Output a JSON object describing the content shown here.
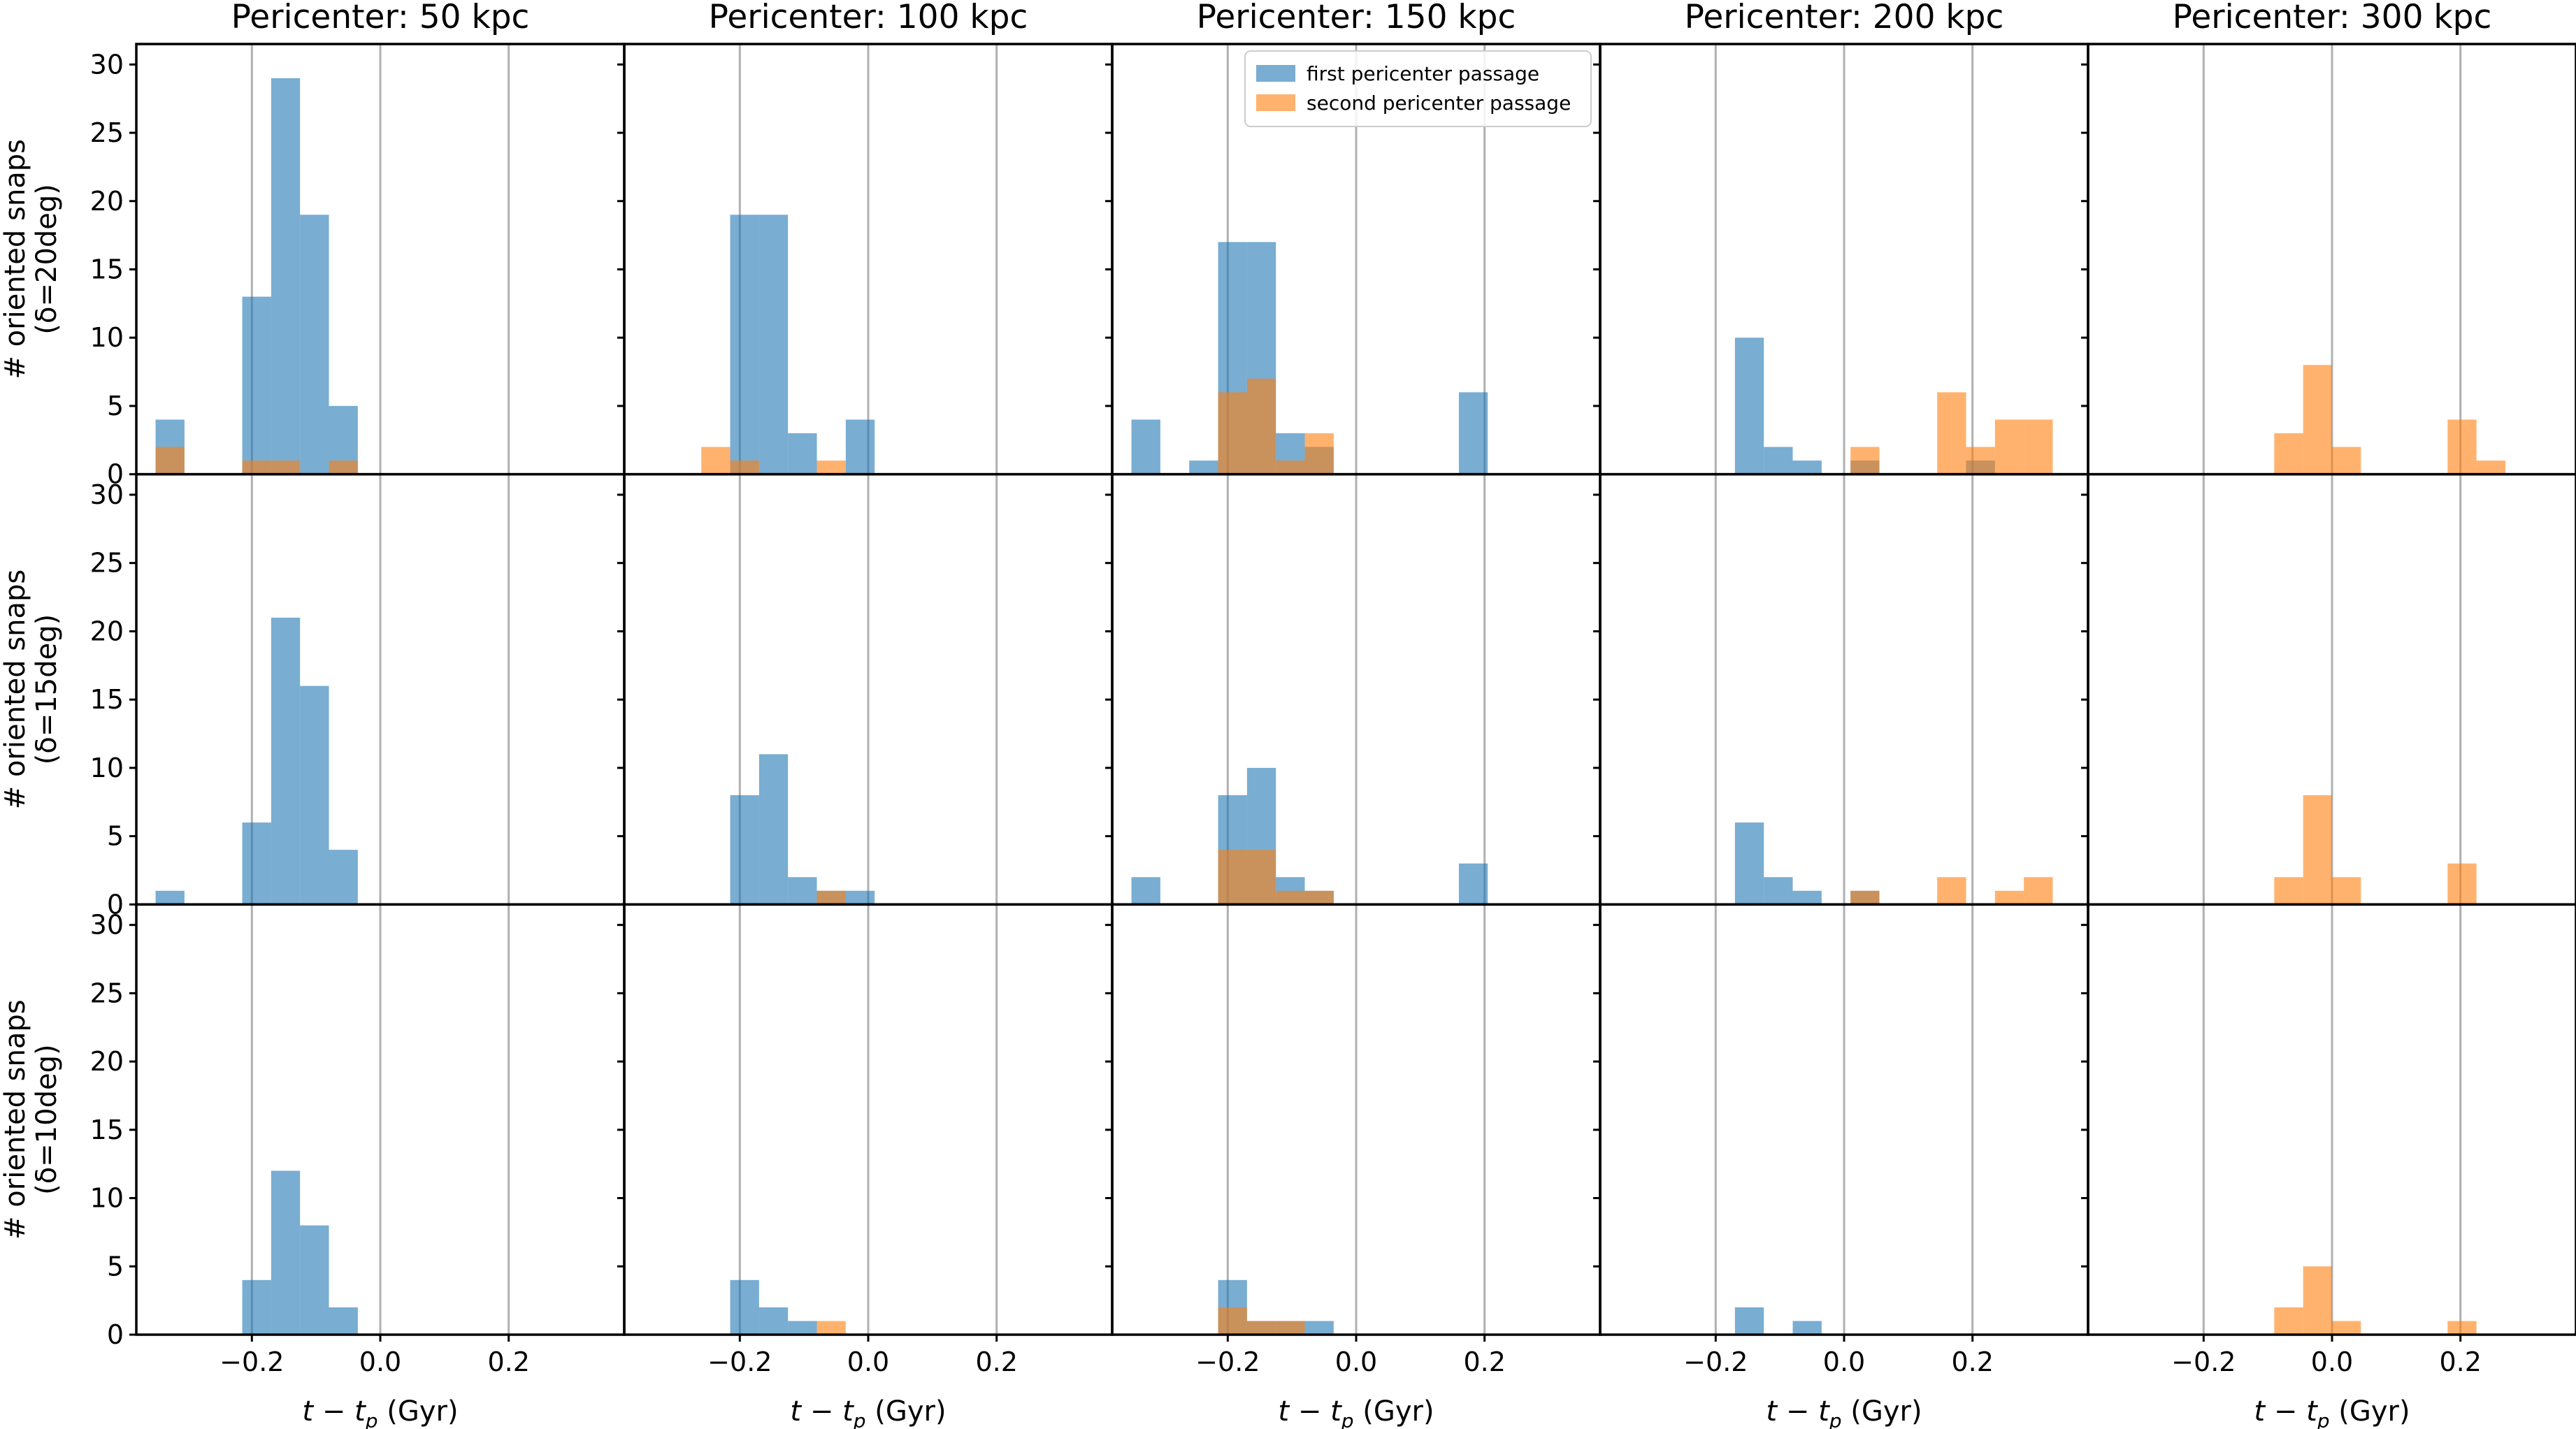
{
  "colors": {
    "first": "#1f77b4",
    "second": "#ff7f0e",
    "grid": "#b0b0b0",
    "axes": "#000000"
  },
  "bar_alpha": 0.6,
  "legend": {
    "placement": "top-right of top row, Pericenter 150 kpc panel",
    "entries": [
      "first pericenter passage",
      "second pericenter passage"
    ]
  },
  "chart_data": {
    "type": "bar",
    "layout": "3x5 grid of histograms, shared axes",
    "column_titles": [
      "Pericenter: 50 kpc",
      "Pericenter: 100 kpc",
      "Pericenter: 150 kpc",
      "Pericenter: 200 kpc",
      "Pericenter: 300 kpc"
    ],
    "row_labels": [
      [
        "# oriented snaps",
        "(δ=20deg)"
      ],
      [
        "# oriented snaps",
        "(δ=15deg)"
      ],
      [
        "# oriented snaps",
        "(δ=10deg)"
      ]
    ],
    "xlabel": "t − t_p (Gyr)",
    "xlim": [
      -0.38,
      0.38
    ],
    "ylim": [
      0,
      31.5
    ],
    "xticks": [
      -0.2,
      0.0,
      0.2
    ],
    "xtick_labels": [
      "−0.2",
      "0.0",
      "0.2"
    ],
    "yticks": [
      0,
      5,
      10,
      15,
      20,
      25,
      30
    ],
    "grid": true,
    "bin_width": 0.045,
    "series_names": [
      "first pericenter passage",
      "second pericenter passage"
    ],
    "panels": [
      [
        {
          "first": [
            [
              -0.3275,
              4
            ],
            [
              -0.1925,
              13
            ],
            [
              -0.1475,
              29
            ],
            [
              -0.1025,
              19
            ],
            [
              -0.0575,
              5
            ]
          ],
          "second": [
            [
              -0.3275,
              2
            ],
            [
              -0.1925,
              1
            ],
            [
              -0.1475,
              1
            ],
            [
              -0.0575,
              1
            ]
          ]
        },
        {
          "first": [
            [
              -0.1925,
              19
            ],
            [
              -0.1475,
              19
            ],
            [
              -0.1025,
              3
            ],
            [
              -0.0125,
              4
            ]
          ],
          "second": [
            [
              -0.2375,
              2
            ],
            [
              -0.1925,
              1
            ],
            [
              -0.0575,
              1
            ]
          ]
        },
        {
          "first": [
            [
              -0.3275,
              4
            ],
            [
              -0.2375,
              1
            ],
            [
              -0.1925,
              17
            ],
            [
              -0.1475,
              17
            ],
            [
              -0.1025,
              3
            ],
            [
              -0.0575,
              2
            ],
            [
              0.1825,
              6
            ]
          ],
          "second": [
            [
              -0.1925,
              6
            ],
            [
              -0.1475,
              7
            ],
            [
              -0.1025,
              1
            ],
            [
              -0.0575,
              3
            ]
          ]
        },
        {
          "first": [
            [
              -0.1475,
              10
            ],
            [
              -0.1025,
              2
            ],
            [
              -0.0575,
              1
            ],
            [
              0.0325,
              1
            ],
            [
              0.2125,
              1
            ]
          ],
          "second": [
            [
              0.0325,
              2
            ],
            [
              0.1675,
              6
            ],
            [
              0.2125,
              2
            ],
            [
              0.2575,
              4
            ],
            [
              0.3025,
              4
            ]
          ]
        },
        {
          "first": [],
          "second": [
            [
              -0.0675,
              3
            ],
            [
              -0.0225,
              8
            ],
            [
              0.0225,
              2
            ],
            [
              0.2025,
              4
            ],
            [
              0.2475,
              1
            ]
          ]
        }
      ],
      [
        {
          "first": [
            [
              -0.3275,
              1
            ],
            [
              -0.1925,
              6
            ],
            [
              -0.1475,
              21
            ],
            [
              -0.1025,
              16
            ],
            [
              -0.0575,
              4
            ]
          ],
          "second": []
        },
        {
          "first": [
            [
              -0.1925,
              8
            ],
            [
              -0.1475,
              11
            ],
            [
              -0.1025,
              2
            ],
            [
              -0.0575,
              1
            ],
            [
              -0.0125,
              1
            ]
          ],
          "second": [
            [
              -0.0575,
              1
            ]
          ]
        },
        {
          "first": [
            [
              -0.3275,
              2
            ],
            [
              -0.1925,
              8
            ],
            [
              -0.1475,
              10
            ],
            [
              -0.1025,
              2
            ],
            [
              -0.0575,
              1
            ],
            [
              0.1825,
              3
            ]
          ],
          "second": [
            [
              -0.1925,
              4
            ],
            [
              -0.1475,
              4
            ],
            [
              -0.1025,
              1
            ],
            [
              -0.0575,
              1
            ]
          ]
        },
        {
          "first": [
            [
              -0.1475,
              6
            ],
            [
              -0.1025,
              2
            ],
            [
              -0.0575,
              1
            ],
            [
              0.0325,
              1
            ]
          ],
          "second": [
            [
              0.0325,
              1
            ],
            [
              0.1675,
              2
            ],
            [
              0.2575,
              1
            ],
            [
              0.3025,
              2
            ]
          ]
        },
        {
          "first": [],
          "second": [
            [
              -0.0675,
              2
            ],
            [
              -0.0225,
              8
            ],
            [
              0.0225,
              2
            ],
            [
              0.2025,
              3
            ]
          ]
        }
      ],
      [
        {
          "first": [
            [
              -0.1925,
              4
            ],
            [
              -0.1475,
              12
            ],
            [
              -0.1025,
              8
            ],
            [
              -0.0575,
              2
            ]
          ],
          "second": []
        },
        {
          "first": [
            [
              -0.1925,
              4
            ],
            [
              -0.1475,
              2
            ],
            [
              -0.1025,
              1
            ]
          ],
          "second": [
            [
              -0.0575,
              1
            ]
          ]
        },
        {
          "first": [
            [
              -0.1925,
              4
            ],
            [
              -0.1475,
              1
            ],
            [
              -0.1025,
              1
            ],
            [
              -0.0575,
              1
            ]
          ],
          "second": [
            [
              -0.1925,
              2
            ],
            [
              -0.1475,
              1
            ],
            [
              -0.1025,
              1
            ]
          ]
        },
        {
          "first": [
            [
              -0.1475,
              2
            ],
            [
              -0.0575,
              1
            ]
          ],
          "second": []
        },
        {
          "first": [],
          "second": [
            [
              -0.0675,
              2
            ],
            [
              -0.0225,
              5
            ],
            [
              0.0225,
              1
            ],
            [
              0.2025,
              1
            ]
          ]
        }
      ]
    ]
  }
}
